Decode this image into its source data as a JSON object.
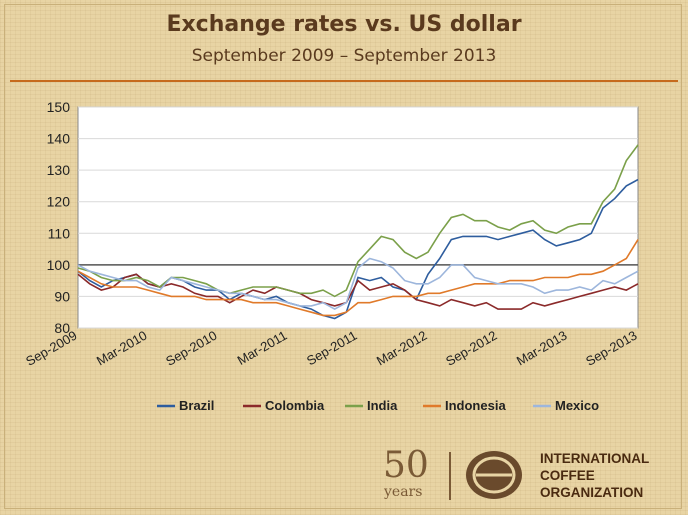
{
  "title": "Exchange rates vs. US dollar",
  "subtitle": "September 2009 – September 2013",
  "logo": {
    "anniversary_number": "50",
    "anniversary_word": "years",
    "org_line1": "INTERNATIONAL",
    "org_line2": "COFFEE",
    "org_line3": "ORGANIZATION"
  },
  "chart_data": {
    "type": "line",
    "x_tick_labels": [
      "Sep-2009",
      "Mar-2010",
      "Sep-2010",
      "Mar-2011",
      "Sep-2011",
      "Mar-2012",
      "Sep-2012",
      "Mar-2013",
      "Sep-2013"
    ],
    "x": [
      "2009-09",
      "2009-10",
      "2009-11",
      "2009-12",
      "2010-01",
      "2010-02",
      "2010-03",
      "2010-04",
      "2010-05",
      "2010-06",
      "2010-07",
      "2010-08",
      "2010-09",
      "2010-10",
      "2010-11",
      "2010-12",
      "2011-01",
      "2011-02",
      "2011-03",
      "2011-04",
      "2011-05",
      "2011-06",
      "2011-07",
      "2011-08",
      "2011-09",
      "2011-10",
      "2011-11",
      "2011-12",
      "2012-01",
      "2012-02",
      "2012-03",
      "2012-04",
      "2012-05",
      "2012-06",
      "2012-07",
      "2012-08",
      "2012-09",
      "2012-10",
      "2012-11",
      "2012-12",
      "2013-01",
      "2013-02",
      "2013-03",
      "2013-04",
      "2013-05",
      "2013-06",
      "2013-07",
      "2013-08",
      "2013-09"
    ],
    "ylim": [
      80,
      150
    ],
    "yticks": [
      80,
      90,
      100,
      110,
      120,
      130,
      140,
      150
    ],
    "reference_line": 100,
    "grid": true,
    "legend_position": "bottom",
    "series": [
      {
        "name": "Brazil",
        "color": "#2e5d9e",
        "values": [
          98,
          95,
          93,
          95,
          96,
          97,
          94,
          93,
          96,
          95,
          93,
          92,
          92,
          89,
          91,
          90,
          89,
          90,
          88,
          87,
          86,
          84,
          83,
          85,
          96,
          95,
          96,
          93,
          92,
          89,
          97,
          102,
          108,
          109,
          109,
          109,
          108,
          109,
          110,
          111,
          108,
          106,
          107,
          108,
          110,
          118,
          121,
          125,
          127
        ]
      },
      {
        "name": "Colombia",
        "color": "#8b2a2a",
        "values": [
          97,
          94,
          92,
          93,
          96,
          97,
          94,
          93,
          94,
          93,
          91,
          90,
          90,
          88,
          90,
          92,
          91,
          93,
          92,
          91,
          89,
          88,
          87,
          88,
          95,
          92,
          93,
          94,
          92,
          89,
          88,
          87,
          89,
          88,
          87,
          88,
          86,
          86,
          86,
          88,
          87,
          88,
          89,
          90,
          91,
          92,
          93,
          92,
          94
        ]
      },
      {
        "name": "India",
        "color": "#7ba04a",
        "values": [
          99,
          98,
          96,
          95,
          95,
          96,
          95,
          93,
          96,
          96,
          95,
          94,
          92,
          91,
          92,
          93,
          93,
          93,
          92,
          91,
          91,
          92,
          90,
          92,
          101,
          105,
          109,
          108,
          104,
          102,
          104,
          110,
          115,
          116,
          114,
          114,
          112,
          111,
          113,
          114,
          111,
          110,
          112,
          113,
          113,
          120,
          124,
          133,
          138
        ]
      },
      {
        "name": "Indonesia",
        "color": "#e07a2a",
        "values": [
          98,
          96,
          94,
          93,
          93,
          93,
          92,
          91,
          90,
          90,
          90,
          89,
          89,
          89,
          89,
          88,
          88,
          88,
          87,
          86,
          85,
          84,
          84,
          85,
          88,
          88,
          89,
          90,
          90,
          90,
          91,
          91,
          92,
          93,
          94,
          94,
          94,
          95,
          95,
          95,
          96,
          96,
          96,
          97,
          97,
          98,
          100,
          102,
          108
        ]
      },
      {
        "name": "Mexico",
        "color": "#9db6dc",
        "values": [
          100,
          98,
          97,
          96,
          95,
          95,
          93,
          92,
          96,
          95,
          94,
          93,
          92,
          91,
          91,
          90,
          89,
          89,
          88,
          87,
          87,
          88,
          86,
          88,
          99,
          102,
          101,
          99,
          95,
          94,
          94,
          96,
          100,
          100,
          96,
          95,
          94,
          94,
          94,
          93,
          91,
          92,
          92,
          93,
          92,
          95,
          94,
          96,
          98
        ]
      }
    ]
  }
}
